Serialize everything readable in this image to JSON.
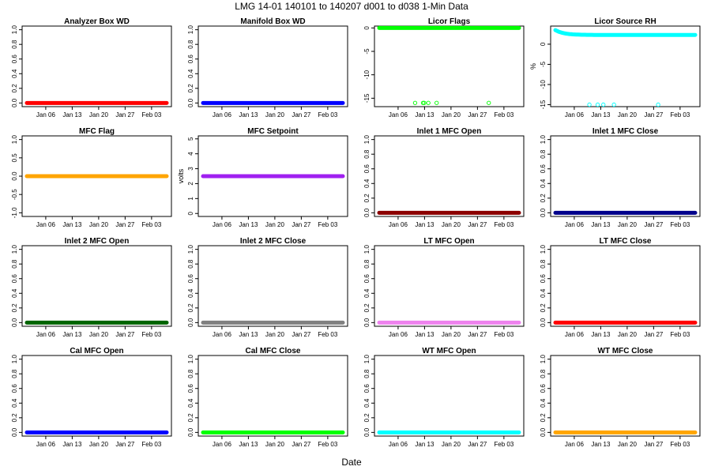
{
  "figure": {
    "title": "LMG   14-01    140101 to 140207    d001 to d038   1-Min Data",
    "xlabel": "Date"
  },
  "chart_data": [
    {
      "type": "scatter",
      "title": "Analyzer Box WD",
      "ylabel": "",
      "ylim": [
        -0.05,
        1.05
      ],
      "yticks": [
        "0.0",
        "0.2",
        "0.4",
        "0.6",
        "0.8",
        "1.0"
      ],
      "xticks": [
        "Jan 06",
        "Jan 13",
        "Jan 20",
        "Jan 27",
        "Feb 03"
      ],
      "xrange_days": [
        1,
        38
      ],
      "color": "#ff0000",
      "series": {
        "kind": "flat",
        "value": 0
      }
    },
    {
      "type": "scatter",
      "title": "Manifold Box WD",
      "ylabel": "",
      "ylim": [
        -0.05,
        1.05
      ],
      "yticks": [
        "0.0",
        "0.2",
        "0.4",
        "0.6",
        "0.8",
        "1.0"
      ],
      "xticks": [
        "Jan 06",
        "Jan 13",
        "Jan 20",
        "Jan 27",
        "Feb 03"
      ],
      "xrange_days": [
        1,
        38
      ],
      "color": "#0000ff",
      "series": {
        "kind": "flat",
        "value": 0
      }
    },
    {
      "type": "scatter",
      "title": "Licor Flags",
      "ylabel": "",
      "ylim": [
        -16.8,
        0.4
      ],
      "yticks": [
        "-15",
        "-10",
        "-5",
        "0"
      ],
      "xticks": [
        "Jan 06",
        "Jan 13",
        "Jan 20",
        "Jan 27",
        "Feb 03"
      ],
      "xrange_days": [
        1,
        38
      ],
      "color": "#00ff00",
      "series": {
        "kind": "flat",
        "value": 0
      },
      "outliers": {
        "days": [
          10.5,
          12.6,
          12.9,
          14.0,
          16.2,
          30.0
        ],
        "value": -16
      }
    },
    {
      "type": "scatter",
      "title": "Licor Source RH",
      "ylabel": "%",
      "ylim": [
        -15.5,
        4.5
      ],
      "yticks": [
        "-15",
        "-10",
        "-5",
        "0"
      ],
      "xticks": [
        "Jan 06",
        "Jan 13",
        "Jan 20",
        "Jan 27",
        "Feb 03"
      ],
      "xrange_days": [
        1,
        38
      ],
      "color": "#00ffff",
      "series": {
        "kind": "decay",
        "start": 3.5,
        "end": 2.3,
        "rate": 0.45
      },
      "outliers": {
        "days": [
          10.0,
          12.2,
          13.7,
          16.5,
          28.2
        ],
        "value": -15
      }
    },
    {
      "type": "scatter",
      "title": "MFC Flag",
      "ylabel": "",
      "ylim": [
        -1.1,
        1.1
      ],
      "yticks": [
        "-1.0",
        "-0.5",
        "0.0",
        "0.5",
        "1.0"
      ],
      "xticks": [
        "Jan 06",
        "Jan 13",
        "Jan 20",
        "Jan 27",
        "Feb 03"
      ],
      "xrange_days": [
        1,
        38
      ],
      "color": "#ffa500",
      "series": {
        "kind": "flat",
        "value": 0
      }
    },
    {
      "type": "scatter",
      "title": "MFC Setpoint",
      "ylabel": "volts",
      "ylim": [
        -0.2,
        5.2
      ],
      "yticks": [
        "0",
        "1",
        "2",
        "3",
        "4",
        "5"
      ],
      "xticks": [
        "Jan 06",
        "Jan 13",
        "Jan 20",
        "Jan 27",
        "Feb 03"
      ],
      "xrange_days": [
        1,
        38
      ],
      "color": "#a020f0",
      "series": {
        "kind": "flat",
        "value": 2.5
      }
    },
    {
      "type": "scatter",
      "title": "Inlet 1 MFC Open",
      "ylabel": "",
      "ylim": [
        -0.05,
        1.05
      ],
      "yticks": [
        "0.0",
        "0.2",
        "0.4",
        "0.6",
        "0.8",
        "1.0"
      ],
      "xticks": [
        "Jan 06",
        "Jan 13",
        "Jan 20",
        "Jan 27",
        "Feb 03"
      ],
      "xrange_days": [
        1,
        38
      ],
      "color": "#8b0000",
      "series": {
        "kind": "flat",
        "value": 0
      }
    },
    {
      "type": "scatter",
      "title": "Inlet 1 MFC Close",
      "ylabel": "",
      "ylim": [
        -0.05,
        1.05
      ],
      "yticks": [
        "0.0",
        "0.2",
        "0.4",
        "0.6",
        "0.8",
        "1.0"
      ],
      "xticks": [
        "Jan 06",
        "Jan 13",
        "Jan 20",
        "Jan 27",
        "Feb 03"
      ],
      "xrange_days": [
        1,
        38
      ],
      "color": "#00008b",
      "series": {
        "kind": "flat",
        "value": 0
      }
    },
    {
      "type": "scatter",
      "title": "Inlet 2 MFC Open",
      "ylabel": "",
      "ylim": [
        -0.05,
        1.05
      ],
      "yticks": [
        "0.0",
        "0.2",
        "0.4",
        "0.6",
        "0.8",
        "1.0"
      ],
      "xticks": [
        "Jan 06",
        "Jan 13",
        "Jan 20",
        "Jan 27",
        "Feb 03"
      ],
      "xrange_days": [
        1,
        38
      ],
      "color": "#006400",
      "series": {
        "kind": "flat",
        "value": 0
      }
    },
    {
      "type": "scatter",
      "title": "Inlet 2 MFC Close",
      "ylabel": "",
      "ylim": [
        -0.05,
        1.05
      ],
      "yticks": [
        "0.0",
        "0.2",
        "0.4",
        "0.6",
        "0.8",
        "1.0"
      ],
      "xticks": [
        "Jan 06",
        "Jan 13",
        "Jan 20",
        "Jan 27",
        "Feb 03"
      ],
      "xrange_days": [
        1,
        38
      ],
      "color": "#808080",
      "series": {
        "kind": "flat",
        "value": 0
      }
    },
    {
      "type": "scatter",
      "title": "LT MFC Open",
      "ylabel": "",
      "ylim": [
        -0.05,
        1.05
      ],
      "yticks": [
        "0.0",
        "0.2",
        "0.4",
        "0.6",
        "0.8",
        "1.0"
      ],
      "xticks": [
        "Jan 06",
        "Jan 13",
        "Jan 20",
        "Jan 27",
        "Feb 03"
      ],
      "xrange_days": [
        1,
        38
      ],
      "color": "#ee82ee",
      "series": {
        "kind": "flat",
        "value": 0
      }
    },
    {
      "type": "scatter",
      "title": "LT MFC Close",
      "ylabel": "",
      "ylim": [
        -0.05,
        1.05
      ],
      "yticks": [
        "0.0",
        "0.2",
        "0.4",
        "0.6",
        "0.8",
        "1.0"
      ],
      "xticks": [
        "Jan 06",
        "Jan 13",
        "Jan 20",
        "Jan 27",
        "Feb 03"
      ],
      "xrange_days": [
        1,
        38
      ],
      "color": "#ff0000",
      "series": {
        "kind": "flat",
        "value": 0
      }
    },
    {
      "type": "scatter",
      "title": "Cal MFC Open",
      "ylabel": "",
      "ylim": [
        -0.05,
        1.05
      ],
      "yticks": [
        "0.0",
        "0.2",
        "0.4",
        "0.6",
        "0.8",
        "1.0"
      ],
      "xticks": [
        "Jan 06",
        "Jan 13",
        "Jan 20",
        "Jan 27",
        "Feb 03"
      ],
      "xrange_days": [
        1,
        38
      ],
      "color": "#0000ff",
      "series": {
        "kind": "flat",
        "value": 0
      }
    },
    {
      "type": "scatter",
      "title": "Cal MFC Close",
      "ylabel": "",
      "ylim": [
        -0.05,
        1.05
      ],
      "yticks": [
        "0.0",
        "0.2",
        "0.4",
        "0.6",
        "0.8",
        "1.0"
      ],
      "xticks": [
        "Jan 06",
        "Jan 13",
        "Jan 20",
        "Jan 27",
        "Feb 03"
      ],
      "xrange_days": [
        1,
        38
      ],
      "color": "#00ff00",
      "series": {
        "kind": "flat",
        "value": 0
      }
    },
    {
      "type": "scatter",
      "title": "WT MFC Open",
      "ylabel": "",
      "ylim": [
        -0.05,
        1.05
      ],
      "yticks": [
        "0.0",
        "0.2",
        "0.4",
        "0.6",
        "0.8",
        "1.0"
      ],
      "xticks": [
        "Jan 06",
        "Jan 13",
        "Jan 20",
        "Jan 27",
        "Feb 03"
      ],
      "xrange_days": [
        1,
        38
      ],
      "color": "#00ffff",
      "series": {
        "kind": "flat",
        "value": 0
      }
    },
    {
      "type": "scatter",
      "title": "WT MFC Close",
      "ylabel": "",
      "ylim": [
        -0.05,
        1.05
      ],
      "yticks": [
        "0.0",
        "0.2",
        "0.4",
        "0.6",
        "0.8",
        "1.0"
      ],
      "xticks": [
        "Jan 06",
        "Jan 13",
        "Jan 20",
        "Jan 27",
        "Feb 03"
      ],
      "xrange_days": [
        1,
        38
      ],
      "color": "#ffa500",
      "series": {
        "kind": "flat",
        "value": 0
      }
    }
  ]
}
